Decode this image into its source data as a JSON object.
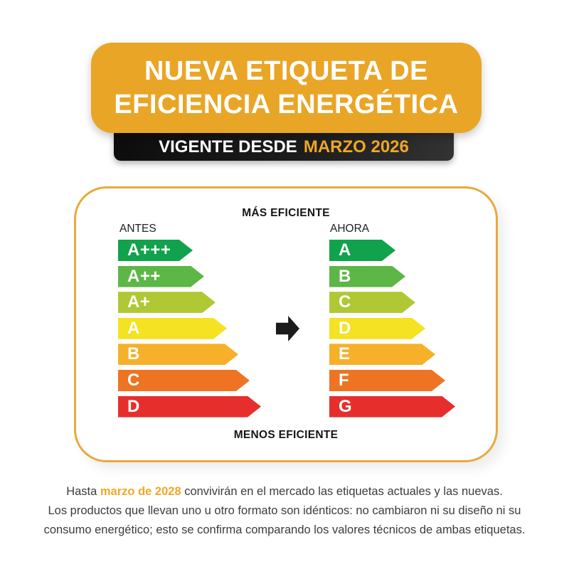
{
  "header": {
    "title_line1": "NUEVA ETIQUETA DE",
    "title_line2": "EFICIENCIA ENERGÉTICA",
    "subtitle_prefix": "VIGENTE DESDE",
    "subtitle_highlight": "MARZO 2026"
  },
  "panel": {
    "top_label": "MÁS EFICIENTE",
    "bottom_label": "MENOS EFICIENTE",
    "left_column": {
      "title": "ANTES",
      "ratings": [
        {
          "label": "A+++",
          "color": "#10A24C"
        },
        {
          "label": "A++",
          "color": "#5CB747"
        },
        {
          "label": "A+",
          "color": "#AFC834"
        },
        {
          "label": "A",
          "color": "#F5E222"
        },
        {
          "label": "B",
          "color": "#F6B02A"
        },
        {
          "label": "C",
          "color": "#EE7423"
        },
        {
          "label": "D",
          "color": "#E62F2C"
        }
      ]
    },
    "right_column": {
      "title": "AHORA",
      "ratings": [
        {
          "label": "A",
          "color": "#10A24C"
        },
        {
          "label": "B",
          "color": "#5CB747"
        },
        {
          "label": "C",
          "color": "#AFC834"
        },
        {
          "label": "D",
          "color": "#F5E222"
        },
        {
          "label": "E",
          "color": "#F6B02A"
        },
        {
          "label": "F",
          "color": "#EE7423"
        },
        {
          "label": "G",
          "color": "#E62F2C"
        }
      ]
    }
  },
  "icons": {
    "transition": "right-arrow"
  },
  "footer": {
    "line1_prefix": "Hasta ",
    "line1_highlight": "marzo de 2028",
    "line1_suffix": " convivirán en el mercado las etiquetas actuales y las nuevas.",
    "line2": "Los productos que llevan uno u otro formato son idénticos: no cambiaron ni su diseño ni su",
    "line3": "consumo energético; esto se confirma comparando los valores técnicos de ambas etiquetas."
  },
  "colors": {
    "accent_orange": "#E9A526",
    "highlight_orange": "#EFA827",
    "bar_black": "#1C1C1C",
    "panel_border": "#E9A93C",
    "body_text": "#3C3C3C"
  }
}
